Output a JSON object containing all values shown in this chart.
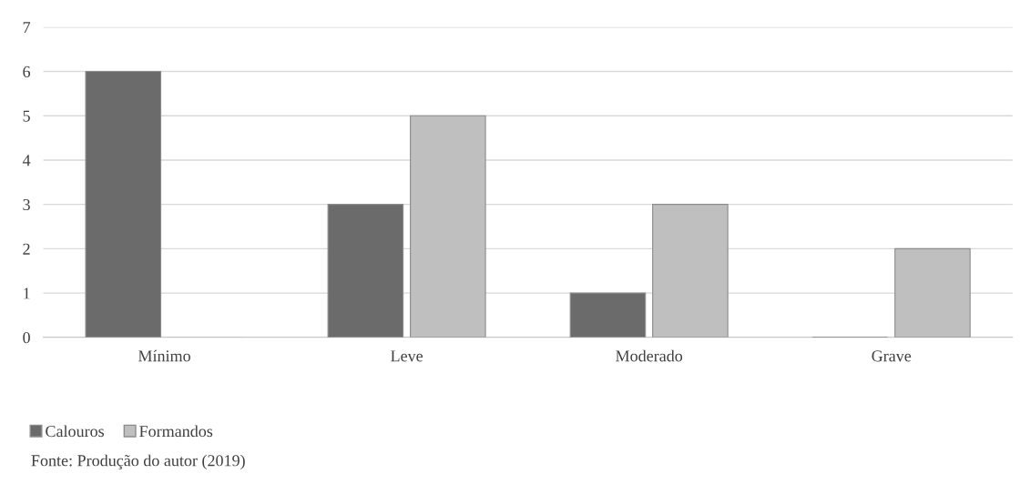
{
  "chart_data": {
    "type": "bar",
    "categories": [
      "Mínimo",
      "Leve",
      "Moderado",
      "Grave"
    ],
    "series": [
      {
        "name": "Calouros",
        "color": "#6b6b6b",
        "values": [
          6,
          3,
          1,
          0
        ]
      },
      {
        "name": "Formandos",
        "color": "#bfbfbf",
        "values": [
          0,
          5,
          3,
          2
        ]
      }
    ],
    "ylim": [
      0,
      7
    ],
    "yticks": [
      0,
      1,
      2,
      3,
      4,
      5,
      6,
      7
    ],
    "grid": "y",
    "legend": "bottom left",
    "annotations": [
      "Fonte: Produção do autor (2019)"
    ]
  }
}
